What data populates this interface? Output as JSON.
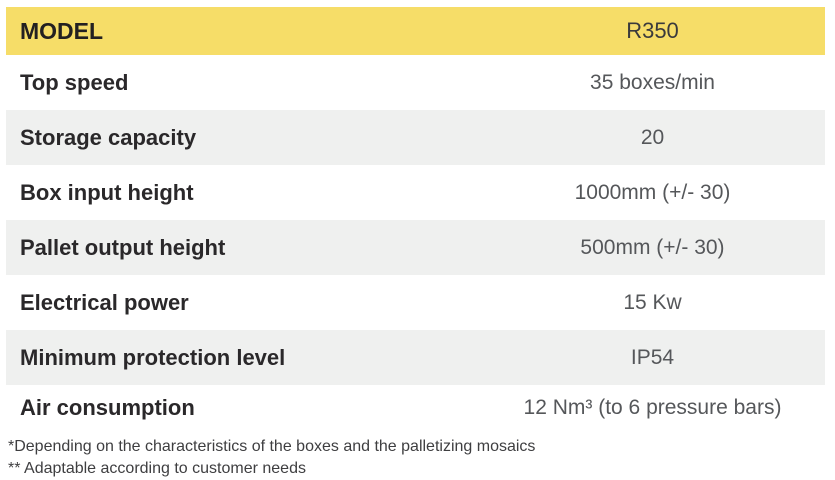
{
  "table": {
    "header": {
      "label": "MODEL",
      "value": "R350"
    },
    "rows": [
      {
        "label": "Top speed",
        "value": "35 boxes/min"
      },
      {
        "label": "Storage capacity",
        "value": "20"
      },
      {
        "label": "Box input height",
        "value": "1000mm (+/- 30)"
      },
      {
        "label": "Pallet output height",
        "value": "500mm (+/- 30)"
      },
      {
        "label": "Electrical power",
        "value": "15 Kw"
      },
      {
        "label": "Minimum protection level",
        "value": "IP54"
      },
      {
        "label": "Air consumption",
        "value": "12 Nm³ (to 6 pressure bars)"
      }
    ],
    "footnotes": [
      "*Depending on the characteristics of the boxes and the palletizing mosaics",
      "** Adaptable according to customer needs"
    ]
  },
  "colors": {
    "header_bg": "#F6DD68",
    "stripe_bg": "#EFF0EF",
    "header_label_color": "#232021",
    "header_value_color": "#3A3A3C",
    "label_color": "#2A282A",
    "value_color": "#55575A",
    "footnote_color": "#3E3E40"
  }
}
